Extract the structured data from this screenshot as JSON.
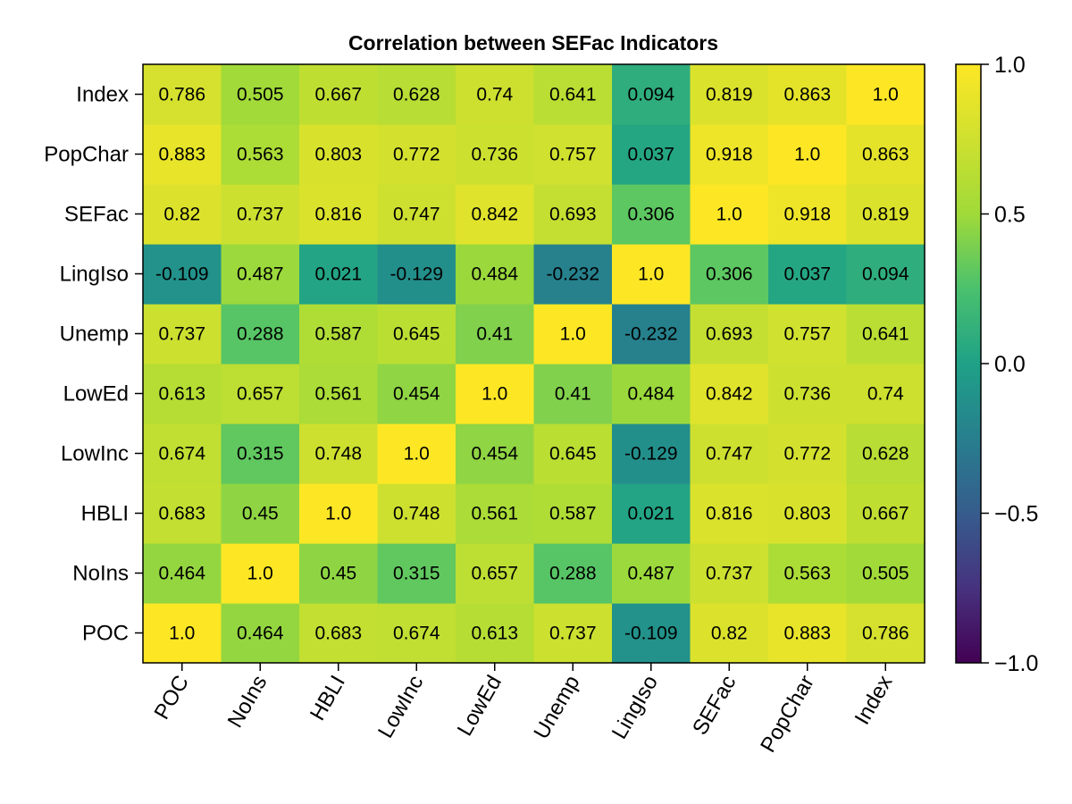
{
  "chart_data": {
    "type": "heatmap",
    "title": "Correlation between SEFac Indicators",
    "x_categories": [
      "POC",
      "NoIns",
      "HBLI",
      "LowInc",
      "LowEd",
      "Unemp",
      "LingIso",
      "SEFac",
      "PopChar",
      "Index"
    ],
    "y_categories_bottom_to_top": [
      "POC",
      "NoIns",
      "HBLI",
      "LowInc",
      "LowEd",
      "Unemp",
      "LingIso",
      "SEFac",
      "PopChar",
      "Index"
    ],
    "values": [
      [
        1.0,
        0.464,
        0.683,
        0.674,
        0.613,
        0.737,
        -0.109,
        0.82,
        0.883,
        0.786
      ],
      [
        0.464,
        1.0,
        0.45,
        0.315,
        0.657,
        0.288,
        0.487,
        0.737,
        0.563,
        0.505
      ],
      [
        0.683,
        0.45,
        1.0,
        0.748,
        0.561,
        0.587,
        0.021,
        0.816,
        0.803,
        0.667
      ],
      [
        0.674,
        0.315,
        0.748,
        1.0,
        0.454,
        0.645,
        -0.129,
        0.747,
        0.772,
        0.628
      ],
      [
        0.613,
        0.657,
        0.561,
        0.454,
        1.0,
        0.41,
        0.484,
        0.842,
        0.736,
        0.74
      ],
      [
        0.737,
        0.288,
        0.587,
        0.645,
        0.41,
        1.0,
        -0.232,
        0.693,
        0.757,
        0.641
      ],
      [
        -0.109,
        0.487,
        0.021,
        -0.129,
        0.484,
        -0.232,
        1.0,
        0.306,
        0.037,
        0.094
      ],
      [
        0.82,
        0.737,
        0.816,
        0.747,
        0.842,
        0.693,
        0.306,
        1.0,
        0.918,
        0.819
      ],
      [
        0.883,
        0.563,
        0.803,
        0.772,
        0.736,
        0.757,
        0.037,
        0.918,
        1.0,
        0.863
      ],
      [
        0.786,
        0.505,
        0.667,
        0.628,
        0.74,
        0.641,
        0.094,
        0.819,
        0.863,
        1.0
      ]
    ],
    "cell_labels": [
      [
        "1.0",
        "0.464",
        "0.683",
        "0.674",
        "0.613",
        "0.737",
        "-0.109",
        "0.82",
        "0.883",
        "0.786"
      ],
      [
        "0.464",
        "1.0",
        "0.45",
        "0.315",
        "0.657",
        "0.288",
        "0.487",
        "0.737",
        "0.563",
        "0.505"
      ],
      [
        "0.683",
        "0.45",
        "1.0",
        "0.748",
        "0.561",
        "0.587",
        "0.021",
        "0.816",
        "0.803",
        "0.667"
      ],
      [
        "0.674",
        "0.315",
        "0.748",
        "1.0",
        "0.454",
        "0.645",
        "-0.129",
        "0.747",
        "0.772",
        "0.628"
      ],
      [
        "0.613",
        "0.657",
        "0.561",
        "0.454",
        "1.0",
        "0.41",
        "0.484",
        "0.842",
        "0.736",
        "0.74"
      ],
      [
        "0.737",
        "0.288",
        "0.587",
        "0.645",
        "0.41",
        "1.0",
        "-0.232",
        "0.693",
        "0.757",
        "0.641"
      ],
      [
        "-0.109",
        "0.487",
        "0.021",
        "-0.129",
        "0.484",
        "-0.232",
        "1.0",
        "0.306",
        "0.037",
        "0.094"
      ],
      [
        "0.82",
        "0.737",
        "0.816",
        "0.747",
        "0.842",
        "0.693",
        "0.306",
        "1.0",
        "0.918",
        "0.819"
      ],
      [
        "0.883",
        "0.563",
        "0.803",
        "0.772",
        "0.736",
        "0.757",
        "0.037",
        "0.918",
        "1.0",
        "0.863"
      ],
      [
        "0.786",
        "0.505",
        "0.667",
        "0.628",
        "0.74",
        "0.641",
        "0.094",
        "0.819",
        "0.863",
        "1.0"
      ]
    ],
    "colormap": "viridis",
    "color_range": [
      -1.0,
      1.0
    ],
    "colorbar_ticks": [
      "1.0",
      "0.5",
      "0.0",
      "−0.5",
      "−1.0"
    ],
    "colorbar_tick_values": [
      1.0,
      0.5,
      0.0,
      -0.5,
      -1.0
    ],
    "grid": false,
    "colorbar_placement": "right"
  }
}
